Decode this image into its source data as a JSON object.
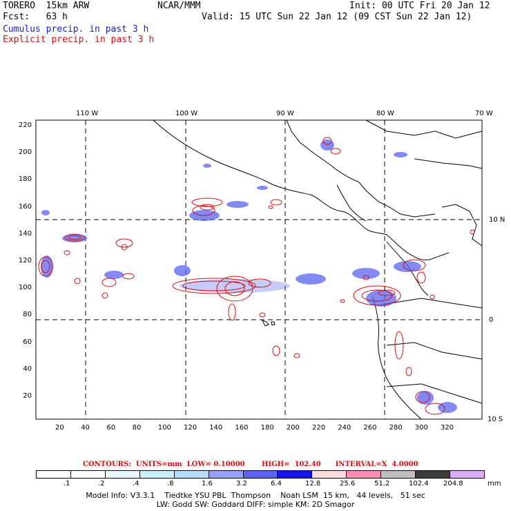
{
  "header": {
    "model": "TORERO  15km ARW",
    "org": "NCAR/MMM",
    "init": "Init: 00 UTC Fri 20 Jan 12",
    "fcst": "Fcst:   63 h",
    "valid": "Valid: 15 UTC Sun 22 Jan 12 (09 CST Sun 22 Jan 12)",
    "line_cumulus": "Cumulus precip. in past 3 h",
    "line_explicit": "Explicit precip. in past 3 h"
  },
  "axes": {
    "top_labels": [
      "110 W",
      "100 W",
      "90 W",
      "80 W",
      "70 W"
    ],
    "right_labels": [
      "10 N",
      "0",
      "10 S"
    ],
    "left_ticks": [
      "220",
      "200",
      "180",
      "160",
      "140",
      "120",
      "100",
      "80",
      "60",
      "40",
      "20"
    ],
    "bottom_ticks": [
      "20",
      "40",
      "60",
      "80",
      "100",
      "120",
      "140",
      "160",
      "180",
      "200",
      "220",
      "240",
      "260",
      "280",
      "300",
      "320"
    ]
  },
  "contours_line": "CONTOURS:  UNITS=mm  LOW= 0.10000       HIGH=  102.40      INTERVAL=X  4.0000",
  "legend": {
    "labels": [
      ".1",
      ".2",
      ".4",
      ".8",
      "1.6",
      "3.2",
      "6.4",
      "12.8",
      "25.6",
      "51.2",
      "102.4",
      "204.8"
    ],
    "unit": "mm",
    "colors": [
      "#ffffff",
      "#ffffff",
      "#e6f8ff",
      "#c8f0ff",
      "#b4dcff",
      "#96a0ff",
      "#5a64f0",
      "#1414f0",
      "#ffdcdc",
      "#ff8cb4",
      "#bebebe",
      "#3c3c3c",
      "#dcaaff"
    ]
  },
  "footer": {
    "line1": "Model Info: V3.3.1    Tiedtke YSU PBL  Thompson    Noah LSM  15 km,   44 levels,   51 sec",
    "line2": "LW: Godd SW: Goddard DIFF: simple KM: 2D Smagor"
  },
  "colors": {
    "cumulus": "#1a1ad0",
    "explicit": "#d01010"
  }
}
